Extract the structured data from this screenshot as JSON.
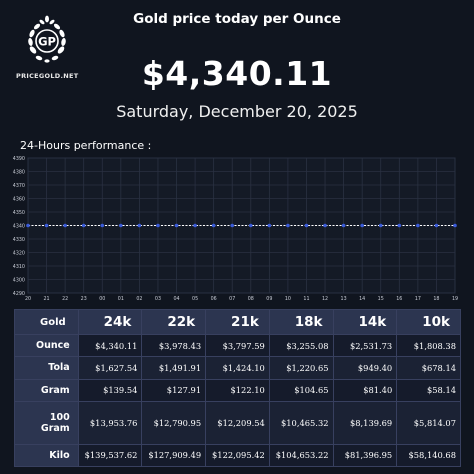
{
  "brand": {
    "initials": "GP",
    "site": "PRICEGOLD.NET",
    "color": "#ffffff"
  },
  "header": {
    "title": "Gold price today per Ounce"
  },
  "price": {
    "value": "$4,340.11"
  },
  "date": {
    "text": "Saturday, December 20, 2025"
  },
  "performance": {
    "label": "24-Hours performance :"
  },
  "chart_data": {
    "type": "line",
    "x": [
      "20",
      "21",
      "22",
      "23",
      "00",
      "01",
      "02",
      "03",
      "04",
      "05",
      "06",
      "07",
      "08",
      "09",
      "10",
      "11",
      "12",
      "13",
      "14",
      "15",
      "16",
      "17",
      "18",
      "19"
    ],
    "series": [
      {
        "values": [
          4340,
          4340,
          4340,
          4340,
          4340,
          4340,
          4340,
          4340,
          4340,
          4340,
          4340,
          4340,
          4340,
          4340,
          4340,
          4340,
          4340,
          4340,
          4340,
          4340,
          4340,
          4340,
          4340,
          4340
        ],
        "color": "#3a5bd9"
      }
    ],
    "yticks": [
      "4390",
      "4380",
      "4370",
      "4360",
      "4350",
      "4340",
      "4330",
      "4320",
      "4310",
      "4300",
      "4290"
    ],
    "ylim": [
      4290,
      4390
    ],
    "grid": true
  },
  "table": {
    "corner": "Gold",
    "columns": [
      "24k",
      "22k",
      "21k",
      "18k",
      "14k",
      "10k"
    ],
    "rows": [
      {
        "label": "Ounce",
        "values": [
          "$4,340.11",
          "$3,978.43",
          "$3,797.59",
          "$3,255.08",
          "$2,531.73",
          "$1,808.38"
        ]
      },
      {
        "label": "Tola",
        "values": [
          "$1,627.54",
          "$1,491.91",
          "$1,424.10",
          "$1,220.65",
          "$949.40",
          "$678.14"
        ]
      },
      {
        "label": "Gram",
        "values": [
          "$139.54",
          "$127.91",
          "$122.10",
          "$104.65",
          "$81.40",
          "$58.14"
        ]
      },
      {
        "label": "100 Gram",
        "values": [
          "$13,953.76",
          "$12,790.95",
          "$12,209.54",
          "$10,465.32",
          "$8,139.69",
          "$5,814.07"
        ]
      },
      {
        "label": "Kilo",
        "values": [
          "$139,537.62",
          "$127,909.49",
          "$122,095.42",
          "$104,653.22",
          "$81,396.95",
          "$58,140.68"
        ]
      }
    ]
  }
}
